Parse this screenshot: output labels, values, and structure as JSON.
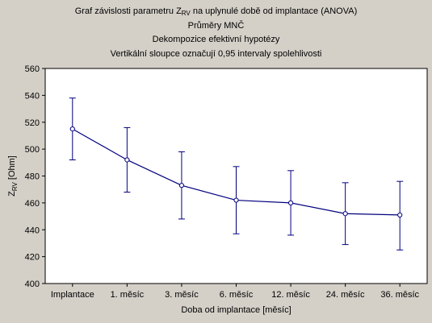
{
  "chart_data": {
    "type": "line",
    "title": {
      "prefix": "Graf závislosti parametru Z",
      "subscript": "RV",
      "suffix": " na uplynulé době od implantace (ANOVA)"
    },
    "subtitles": [
      "Průměry MNČ",
      "Dekompozice efektivní hypotézy",
      "Vertikální sloupce označují 0,95 intervaly spolehlivosti"
    ],
    "xlabel": "Doba od implantace [měsíc]",
    "ylabel": {
      "prefix": "Z",
      "subscript": "RV",
      "suffix": " [Ohm]"
    },
    "categories": [
      "Implantace",
      "1. měsíc",
      "3. měsíc",
      "6. měsíc",
      "12. měsíc",
      "24. měsíc",
      "36. měsíc"
    ],
    "values": [
      515,
      492,
      473,
      462,
      460,
      452,
      451
    ],
    "ci_lower": [
      492,
      468,
      448,
      437,
      436,
      429,
      425
    ],
    "ci_upper": [
      538,
      516,
      498,
      487,
      484,
      475,
      476
    ],
    "ylim": [
      400,
      560
    ],
    "yticks": [
      400,
      420,
      440,
      460,
      480,
      500,
      520,
      540,
      560
    ],
    "grid": false,
    "legend": "none",
    "colors": {
      "line": "#00007f",
      "marker_fill": "#ffffff",
      "plot_background": "#ffffff",
      "figure_background": "#d4d0c8"
    }
  }
}
